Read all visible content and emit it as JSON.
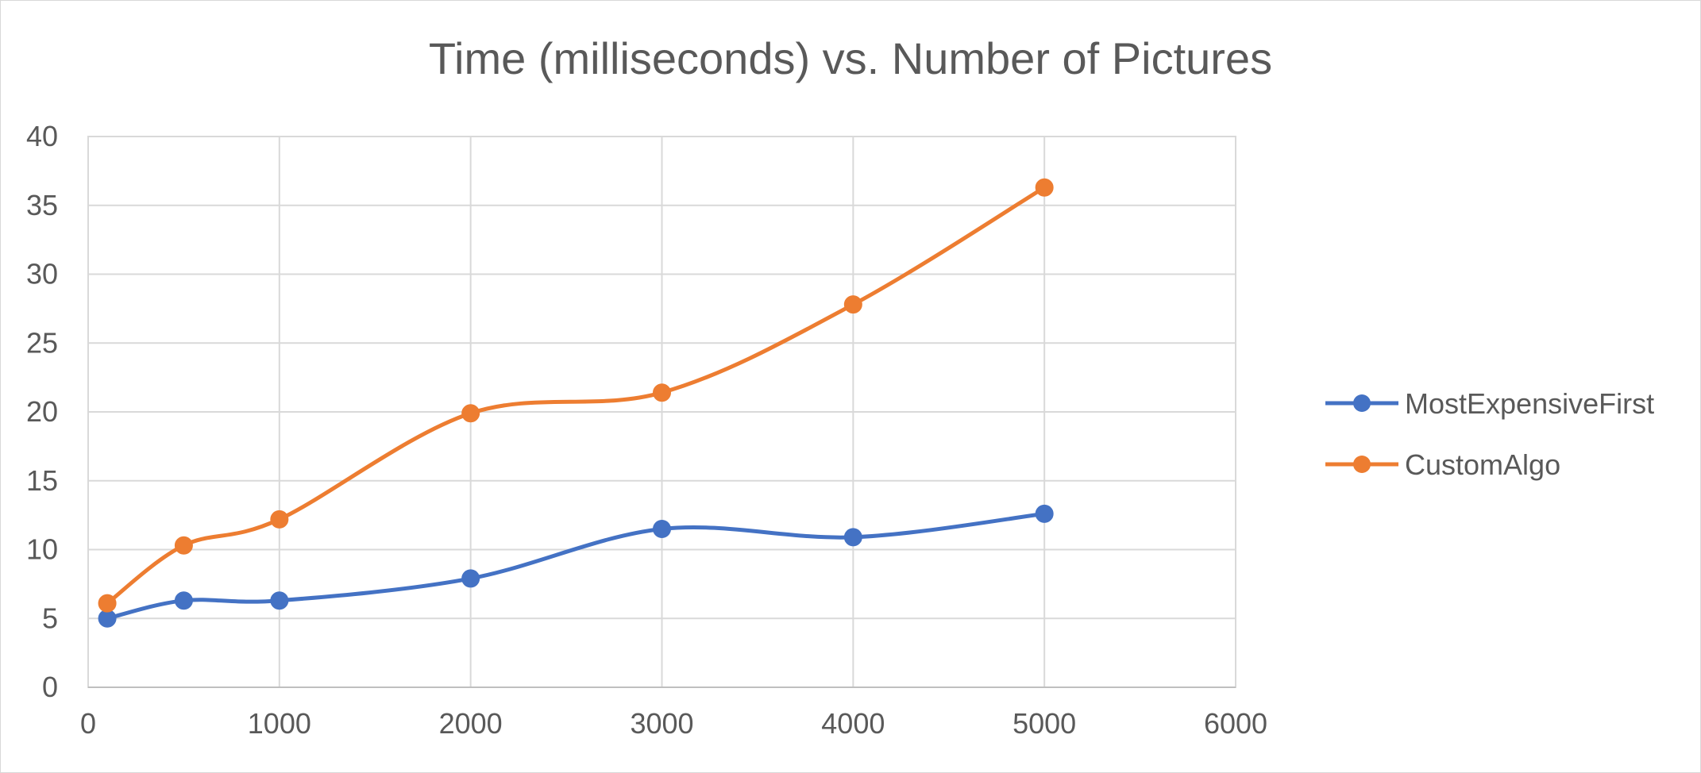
{
  "chart_data": {
    "type": "scatter",
    "title": "Time (milliseconds) vs. Number of Pictures",
    "xlabel": "",
    "ylabel": "",
    "xlim": [
      0,
      6000
    ],
    "ylim": [
      0,
      40
    ],
    "xticks": [
      "0",
      "1000",
      "2000",
      "3000",
      "4000",
      "5000",
      "6000"
    ],
    "yticks": [
      "0",
      "5",
      "10",
      "15",
      "20",
      "25",
      "30",
      "35",
      "40"
    ],
    "grid": true,
    "smooth_lines": true,
    "legend_position": "right",
    "series": [
      {
        "name": "MostExpensiveFirst",
        "color": "#4472C4",
        "x": [
          100,
          500,
          1000,
          2000,
          3000,
          4000,
          5000
        ],
        "y": [
          5.0,
          6.3,
          6.3,
          7.9,
          11.5,
          10.9,
          12.6
        ]
      },
      {
        "name": "CustomAlgo",
        "color": "#ED7D31",
        "x": [
          100,
          500,
          1000,
          2000,
          3000,
          4000,
          5000
        ],
        "y": [
          6.1,
          10.3,
          12.2,
          19.9,
          21.4,
          27.8,
          36.3
        ]
      }
    ]
  }
}
